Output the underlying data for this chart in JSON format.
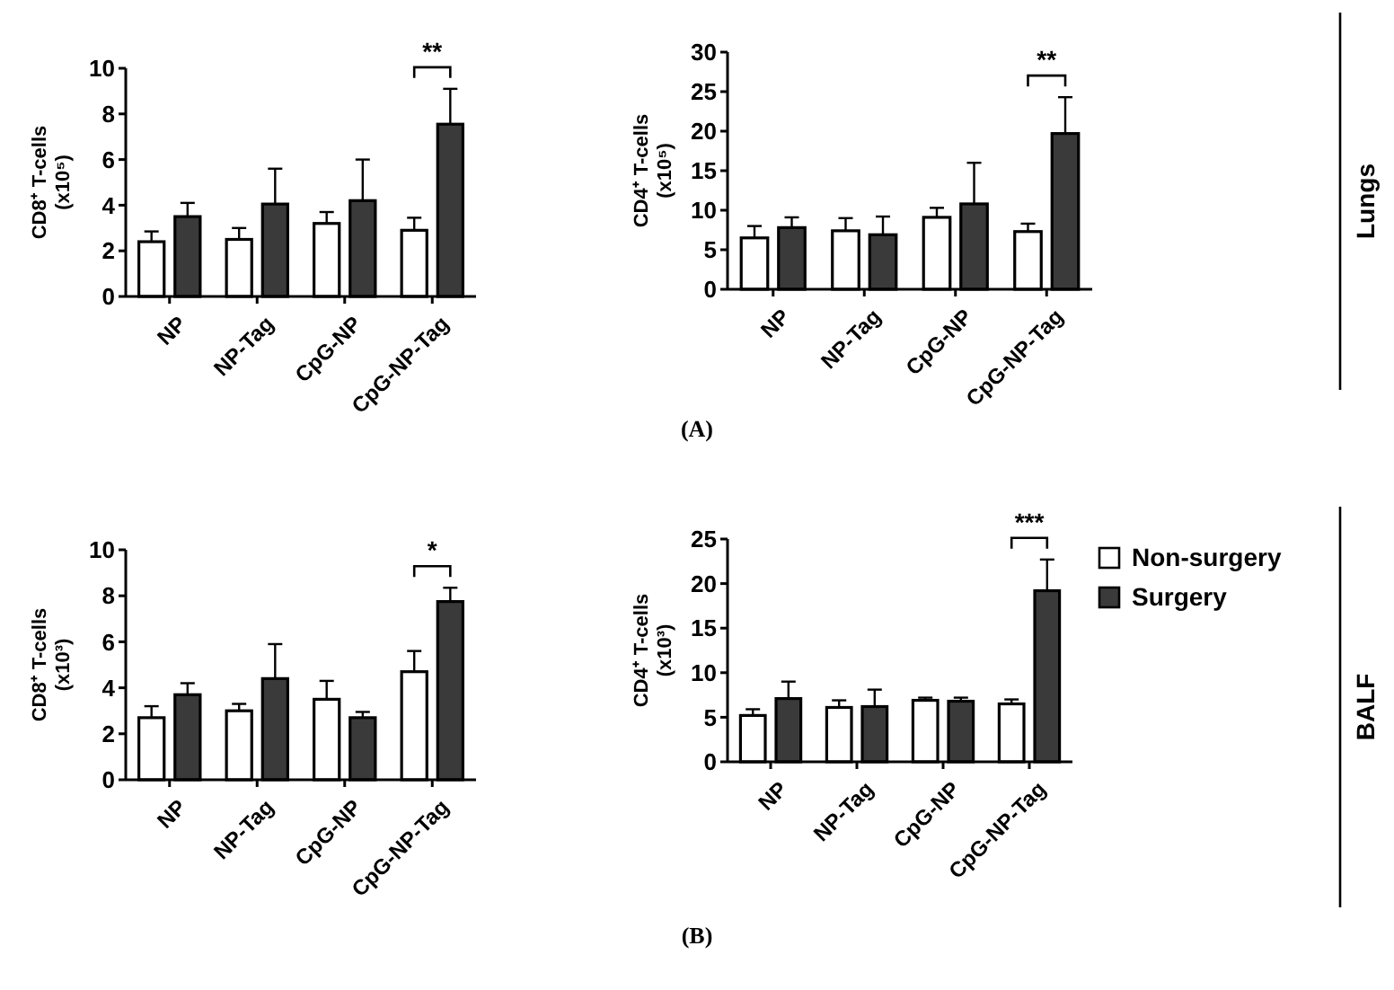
{
  "chart_data": [
    {
      "type": "bar",
      "ylabel": "CD8⁺ T-cells\n(x10⁵)",
      "categories": [
        "NP",
        "NP-Tag",
        "CpG-NP",
        "CpG-NP-Tag"
      ],
      "ylim": [
        0,
        10
      ],
      "yticks": [
        0,
        2,
        4,
        6,
        8,
        10
      ],
      "grid": false,
      "legend": false,
      "series": [
        {
          "color": "#ffffff",
          "values": [
            2.4,
            2.5,
            3.2,
            2.9
          ],
          "errors": [
            [
              2.4,
              2.85
            ],
            [
              2.5,
              3.0
            ],
            [
              3.2,
              3.7
            ],
            [
              2.9,
              3.45
            ]
          ]
        },
        {
          "color": "#3a3a3a",
          "values": [
            3.5,
            4.05,
            4.2,
            7.55
          ],
          "errors": [
            [
              3.5,
              4.1
            ],
            [
              4.05,
              5.6
            ],
            [
              4.2,
              6.0
            ],
            [
              7.55,
              9.1
            ]
          ]
        }
      ],
      "annotations": [
        "**"
      ]
    },
    {
      "type": "bar",
      "ylabel": "CD4⁺ T-cells\n(x10⁵)",
      "categories": [
        "NP",
        "NP-Tag",
        "CpG-NP",
        "CpG-NP-Tag"
      ],
      "ylim": [
        0,
        30
      ],
      "yticks": [
        0,
        5,
        10,
        15,
        20,
        25,
        30
      ],
      "grid": false,
      "legend": false,
      "series": [
        {
          "color": "#ffffff",
          "values": [
            6.5,
            7.4,
            9.1,
            7.3
          ],
          "errors": [
            [
              6.5,
              8.0
            ],
            [
              7.4,
              9.0
            ],
            [
              9.1,
              10.3
            ],
            [
              7.3,
              8.3
            ]
          ]
        },
        {
          "color": "#3a3a3a",
          "values": [
            7.8,
            6.9,
            10.8,
            19.7
          ],
          "errors": [
            [
              7.8,
              9.1
            ],
            [
              6.9,
              9.2
            ],
            [
              10.8,
              16.0
            ],
            [
              19.7,
              24.3
            ]
          ]
        }
      ],
      "annotations": [
        "**",
        "(A)",
        "Lungs"
      ]
    },
    {
      "type": "bar",
      "ylabel": "CD8⁺ T-cells\n(x10³)",
      "categories": [
        "NP",
        "NP-Tag",
        "CpG-NP",
        "CpG-NP-Tag"
      ],
      "ylim": [
        0,
        10
      ],
      "yticks": [
        0,
        2,
        4,
        6,
        8,
        10
      ],
      "grid": false,
      "legend": false,
      "series": [
        {
          "color": "#ffffff",
          "values": [
            2.7,
            3.0,
            3.5,
            4.7
          ],
          "errors": [
            [
              2.7,
              3.2
            ],
            [
              3.0,
              3.3
            ],
            [
              3.5,
              4.3
            ],
            [
              4.7,
              5.6
            ]
          ]
        },
        {
          "color": "#3a3a3a",
          "values": [
            3.7,
            4.4,
            2.7,
            7.75
          ],
          "errors": [
            [
              3.7,
              4.2
            ],
            [
              4.4,
              5.9
            ],
            [
              2.7,
              2.95
            ],
            [
              7.75,
              8.35
            ]
          ]
        }
      ],
      "annotations": [
        "*"
      ]
    },
    {
      "type": "bar",
      "ylabel": "CD4⁺ T-cells\n(x10³)",
      "categories": [
        "NP",
        "NP-Tag",
        "CpG-NP",
        "CpG-NP-Tag"
      ],
      "ylim": [
        0,
        25
      ],
      "yticks": [
        0,
        5,
        10,
        15,
        20,
        25
      ],
      "grid": false,
      "legend": "right",
      "series": [
        {
          "name": "Non-surgery",
          "color": "#ffffff",
          "values": [
            5.2,
            6.1,
            6.9,
            6.5
          ],
          "errors": [
            [
              5.2,
              5.9
            ],
            [
              6.1,
              6.9
            ],
            [
              6.9,
              7.2
            ],
            [
              6.5,
              7.0
            ]
          ]
        },
        {
          "name": "Surgery",
          "color": "#3a3a3a",
          "values": [
            7.1,
            6.2,
            6.8,
            19.2
          ],
          "errors": [
            [
              7.1,
              9.0
            ],
            [
              6.2,
              8.1
            ],
            [
              6.8,
              7.2
            ],
            [
              19.2,
              22.7
            ]
          ]
        }
      ],
      "annotations": [
        "***",
        "(B)",
        "BALF"
      ]
    }
  ]
}
